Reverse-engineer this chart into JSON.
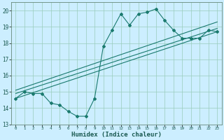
{
  "xlabel": "Humidex (Indice chaleur)",
  "bg_color": "#cceeff",
  "grid_color": "#99ccbb",
  "line_color": "#1a7a6e",
  "xlim": [
    -0.5,
    23.5
  ],
  "ylim": [
    13,
    20.5
  ],
  "yticks": [
    13,
    14,
    15,
    16,
    17,
    18,
    19,
    20
  ],
  "xticks": [
    0,
    1,
    2,
    3,
    4,
    5,
    6,
    7,
    8,
    9,
    10,
    11,
    12,
    13,
    14,
    15,
    16,
    17,
    18,
    19,
    20,
    21,
    22,
    23
  ],
  "series1_x": [
    0,
    1,
    2,
    3,
    4,
    5,
    6,
    7,
    8,
    9,
    10,
    11,
    12,
    13,
    14,
    15,
    16,
    17,
    18,
    19,
    20,
    21,
    22,
    23
  ],
  "series1_y": [
    14.6,
    15.0,
    14.9,
    14.9,
    14.3,
    14.2,
    13.8,
    13.5,
    13.5,
    14.6,
    17.8,
    18.8,
    19.8,
    19.1,
    19.8,
    19.9,
    20.1,
    19.4,
    18.8,
    18.3,
    18.3,
    18.3,
    18.8,
    18.7
  ],
  "line2_x": [
    0,
    23
  ],
  "line2_y": [
    14.6,
    18.7
  ],
  "line3_x": [
    0,
    23
  ],
  "line3_y": [
    14.9,
    18.9
  ],
  "line4_x": [
    0,
    23
  ],
  "line4_y": [
    15.1,
    19.3
  ]
}
